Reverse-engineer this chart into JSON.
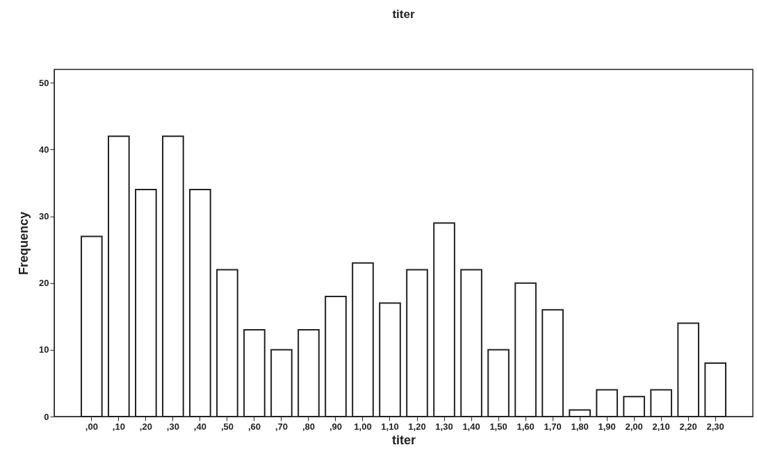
{
  "chart_data": {
    "type": "bar",
    "title": "titer",
    "xlabel": "titer",
    "ylabel": "Frequency",
    "categories": [
      ",00",
      ",10",
      ",20",
      ",30",
      ",40",
      ",50",
      ",60",
      ",70",
      ",80",
      ",90",
      "1,00",
      "1,10",
      "1,20",
      "1,30",
      "1,40",
      "1,50",
      "1,60",
      "1,70",
      "1,80",
      "1,90",
      "2,00",
      "2,10",
      "2,20",
      "2,30"
    ],
    "values": [
      27,
      42,
      34,
      42,
      34,
      22,
      13,
      10,
      13,
      18,
      23,
      17,
      22,
      29,
      22,
      10,
      20,
      16,
      1,
      4,
      3,
      4,
      14,
      8
    ],
    "color": "#ffffff",
    "ylim": [
      0,
      52
    ],
    "yticks": [
      0,
      10,
      20,
      30,
      40,
      50
    ],
    "grid": false
  }
}
